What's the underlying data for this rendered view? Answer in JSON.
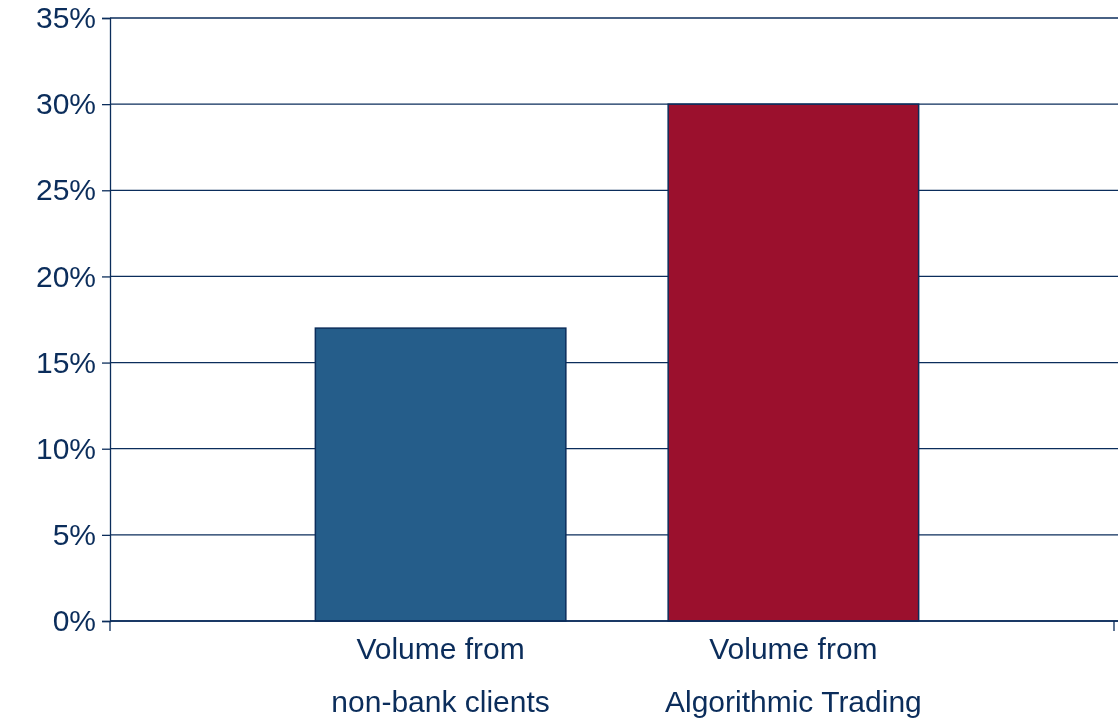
{
  "chart_data": {
    "type": "bar",
    "categories": [
      "Volume from\nnon-bank clients",
      "Volume from\nAlgorithmic Trading"
    ],
    "values": [
      17,
      30
    ],
    "colors": [
      "#255d8a",
      "#9b102d"
    ],
    "ylim": [
      0,
      35
    ],
    "yticks": [
      {
        "value": 0,
        "label": "0%"
      },
      {
        "value": 5,
        "label": "5%"
      },
      {
        "value": 10,
        "label": "10%"
      },
      {
        "value": 15,
        "label": "15%"
      },
      {
        "value": 20,
        "label": "20%"
      },
      {
        "value": 25,
        "label": "25%"
      },
      {
        "value": 30,
        "label": "30%"
      },
      {
        "value": 35,
        "label": "35%"
      }
    ],
    "grid": "y"
  }
}
